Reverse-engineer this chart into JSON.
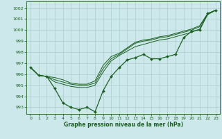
{
  "xlabel": "Graphe pression niveau de la mer (hPa)",
  "background_color": "#cde8ea",
  "grid_color": "#aacccc",
  "line_color": "#1a6020",
  "xlim": [
    -0.5,
    23.5
  ],
  "ylim": [
    992.4,
    1002.6
  ],
  "yticks": [
    993,
    994,
    995,
    996,
    997,
    998,
    999,
    1000,
    1001,
    1002
  ],
  "xticks": [
    0,
    1,
    2,
    3,
    4,
    5,
    6,
    7,
    8,
    9,
    10,
    11,
    12,
    13,
    14,
    15,
    16,
    17,
    18,
    19,
    20,
    21,
    22,
    23
  ],
  "line_main": [
    996.6,
    995.9,
    995.8,
    994.7,
    993.4,
    993.0,
    992.8,
    993.0,
    992.6,
    994.5,
    995.8,
    996.6,
    997.3,
    997.5,
    997.8,
    997.4,
    997.4,
    997.6,
    997.8,
    999.3,
    999.9,
    1000.0,
    1001.5,
    1001.8
  ],
  "line2": [
    996.6,
    995.9,
    995.8,
    995.7,
    995.5,
    995.2,
    995.1,
    995.1,
    995.4,
    996.8,
    997.6,
    997.9,
    998.4,
    998.9,
    999.1,
    999.2,
    999.4,
    999.5,
    999.7,
    999.9,
    1000.1,
    1000.4,
    1001.5,
    1001.8
  ],
  "line3": [
    996.6,
    995.9,
    995.8,
    995.5,
    995.3,
    995.1,
    995.0,
    995.0,
    995.2,
    996.5,
    997.4,
    997.8,
    998.3,
    998.8,
    999.0,
    999.1,
    999.3,
    999.4,
    999.6,
    999.8,
    1000.0,
    1000.3,
    1001.5,
    1001.8
  ],
  "line4": [
    996.6,
    995.9,
    995.8,
    995.3,
    995.1,
    994.9,
    994.8,
    994.8,
    995.0,
    996.2,
    997.2,
    997.7,
    998.1,
    998.5,
    998.7,
    998.9,
    999.1,
    999.2,
    999.4,
    999.6,
    999.8,
    1000.1,
    1001.4,
    1001.8
  ]
}
